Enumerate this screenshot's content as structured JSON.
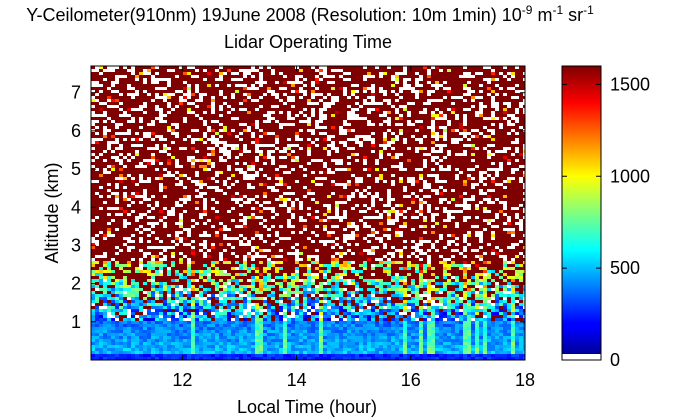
{
  "chart_data": {
    "type": "heatmap",
    "title_line1_prefix": "Y-Ceilometer(910nm) 19June 2008 (Resolution: 10m 1min) 10",
    "title_sup1": "-9",
    "title_mid": " m",
    "title_sup2": "-1",
    "title_end": " sr",
    "title_sup3": "-1",
    "title_line2": "Lidar Operating Time",
    "xlabel": "Local Time (hour)",
    "ylabel": "Altitude (km)",
    "xlim": [
      10.4,
      18
    ],
    "ylim": [
      0,
      7.7
    ],
    "xticks": [
      12,
      14,
      16,
      18
    ],
    "xtick_labels": [
      "12",
      "14",
      "16",
      "18"
    ],
    "yticks": [
      1,
      2,
      3,
      4,
      5,
      6,
      7
    ],
    "ytick_labels": [
      "1",
      "2",
      "3",
      "4",
      "5",
      "6",
      "7"
    ],
    "colorbar": {
      "min": 0,
      "max": 1600,
      "ticks": [
        0,
        500,
        1000,
        1500
      ],
      "tick_labels": [
        "0",
        "500",
        "1000",
        "1500"
      ],
      "colormap": "jet"
    },
    "features": {
      "near_surface_layer_km": [
        0,
        1.0
      ],
      "transition_km": [
        1.0,
        2.6
      ],
      "cloud_layer": [
        {
          "time": 11.0,
          "alt": 2.2
        },
        {
          "time": 12.0,
          "alt": 2.05
        },
        {
          "time": 12.5,
          "alt": 2.15
        },
        {
          "time": 13.4,
          "alt": 2.3
        },
        {
          "time": 14.3,
          "alt": 2.35
        },
        {
          "time": 15.2,
          "alt": 2.25
        },
        {
          "time": 16.0,
          "alt": 2.2
        },
        {
          "time": 16.9,
          "alt": 2.3
        },
        {
          "time": 17.5,
          "alt": 2.5
        },
        {
          "time": 18.0,
          "alt": 2.6
        }
      ],
      "noise_above_km": 2.6,
      "noise_color_mix": {
        "dark_red": 0.72,
        "white": 0.28
      }
    }
  }
}
